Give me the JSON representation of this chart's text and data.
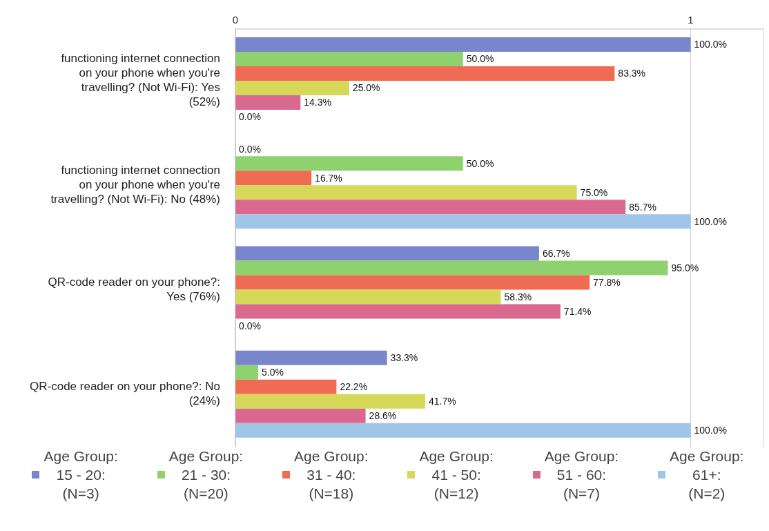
{
  "chart_data": {
    "type": "bar",
    "orientation": "horizontal",
    "categories": [
      "functioning internet connection on your phone when you're travelling? (Not Wi-Fi): Yes (52%)",
      "functioning internet connection on your phone when you're travelling? (Not Wi-Fi): No (48%)",
      "QR-code reader on your phone?: Yes (76%)",
      "QR-code reader on your phone?: No (24%)"
    ],
    "series": [
      {
        "name": "Age Group: 15 - 20: (N=3)",
        "color": "#7986cb",
        "values": [
          1,
          0,
          0.667,
          0.333
        ],
        "value_labels": [
          "100.0%",
          "0.0%",
          "66.7%",
          "33.3%"
        ]
      },
      {
        "name": "Age Group: 21 - 30: (N=20)",
        "color": "#8fd16f",
        "values": [
          0.5,
          0.5,
          0.95,
          0.05
        ],
        "value_labels": [
          "50.0%",
          "50.0%",
          "95.0%",
          "5.0%"
        ]
      },
      {
        "name": "Age Group: 31 - 40: (N=18)",
        "color": "#ef6b53",
        "values": [
          0.833,
          0.167,
          0.778,
          0.222
        ],
        "value_labels": [
          "83.3%",
          "16.7%",
          "77.8%",
          "22.2%"
        ]
      },
      {
        "name": "Age Group: 41 - 50: (N=12)",
        "color": "#d6d85a",
        "values": [
          0.25,
          0.75,
          0.583,
          0.417
        ],
        "value_labels": [
          "25.0%",
          "75.0%",
          "58.3%",
          "41.7%"
        ]
      },
      {
        "name": "Age Group: 51 - 60: (N=7)",
        "color": "#d9698f",
        "values": [
          0.143,
          0.857,
          0.714,
          0.286
        ],
        "value_labels": [
          "14.3%",
          "85.7%",
          "71.4%",
          "28.6%"
        ]
      },
      {
        "name": "Age Group: 61+: (N=2)",
        "color": "#9fc5e8",
        "values": [
          0,
          1,
          0,
          1
        ],
        "value_labels": [
          "0.0%",
          "100.0%",
          "0.0%",
          "100.0%"
        ]
      }
    ],
    "xlim": [
      0,
      1.16
    ],
    "xticks": [
      0,
      1
    ],
    "grid": "x",
    "legend": "bottom"
  }
}
